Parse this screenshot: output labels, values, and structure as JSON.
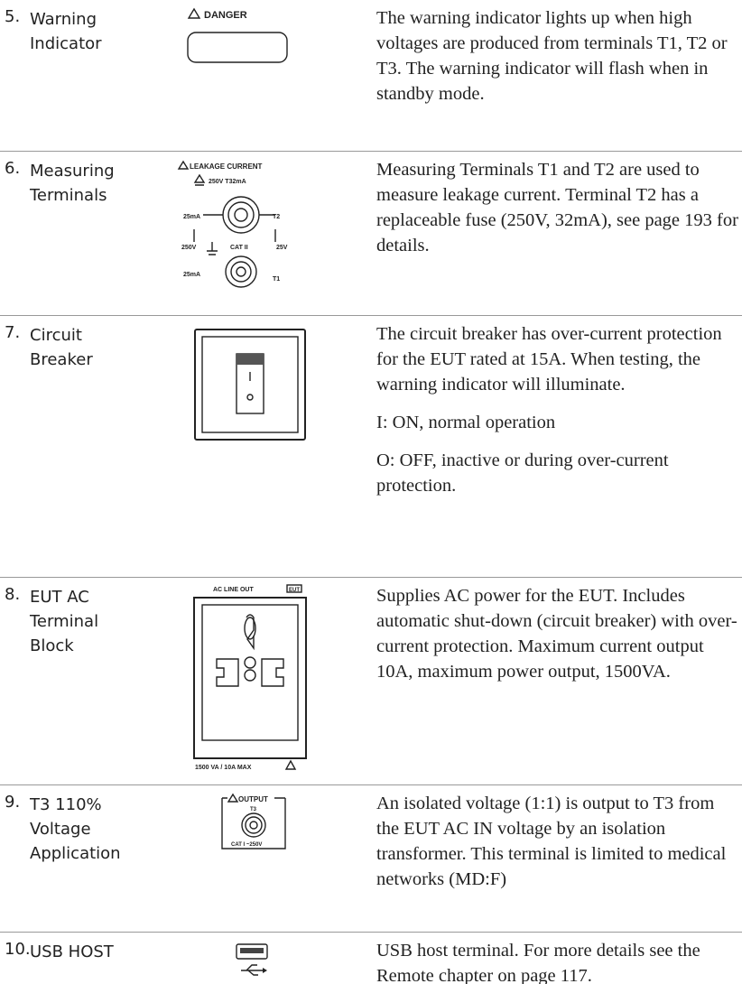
{
  "rows": [
    {
      "number": "5.",
      "name": "Warning Indicator",
      "icon_labels": [
        "DANGER"
      ],
      "description": [
        "The warning indicator lights up when high voltages are produced from terminals T1, T2 or T3. The warning indicator will flash when in standby mode."
      ]
    },
    {
      "number": "6.",
      "name": "Measuring Terminals",
      "icon_labels": [
        "LEAKAGE CURRENT",
        "250V T32mA",
        "25mA",
        "T2",
        "250V",
        "CAT II",
        "25V",
        "25mA",
        "T1"
      ],
      "description": [
        "Measuring Terminals T1 and T2 are used to measure leakage current. Terminal T2 has a replaceable fuse (250V, 32mA), see page 193 for details."
      ]
    },
    {
      "number": "7.",
      "name": "Circuit Breaker",
      "icon_labels": [],
      "description": [
        "The circuit breaker has over-current protection for the EUT rated at 15A. When testing, the warning indicator will illuminate.",
        "I: ON, normal operation",
        "O: OFF, inactive or during over-current protection."
      ]
    },
    {
      "number": "8.",
      "name": "EUT AC Terminal Block",
      "icon_labels": [
        "AC LINE OUT",
        "EUT",
        "1500 VA / 10A  MAX"
      ],
      "description": [
        "Supplies AC power for the EUT. Includes automatic shut-down (circuit breaker) with over-current protection. Maximum current output 10A, maximum power output, 1500VA."
      ]
    },
    {
      "number": "9.",
      "name": "T3 110% Voltage Application",
      "icon_labels": [
        "OUTPUT",
        "T3",
        "CAT I ~250V"
      ],
      "description": [
        "An isolated voltage (1:1) is output to T3 from the EUT AC IN voltage by an isolation transformer. This terminal is limited to medical networks (MD:F)"
      ]
    },
    {
      "number": "10.",
      "name": "USB HOST",
      "icon_labels": [],
      "description": [
        "USB host terminal. For more details see the Remote chapter on page 117."
      ]
    }
  ]
}
